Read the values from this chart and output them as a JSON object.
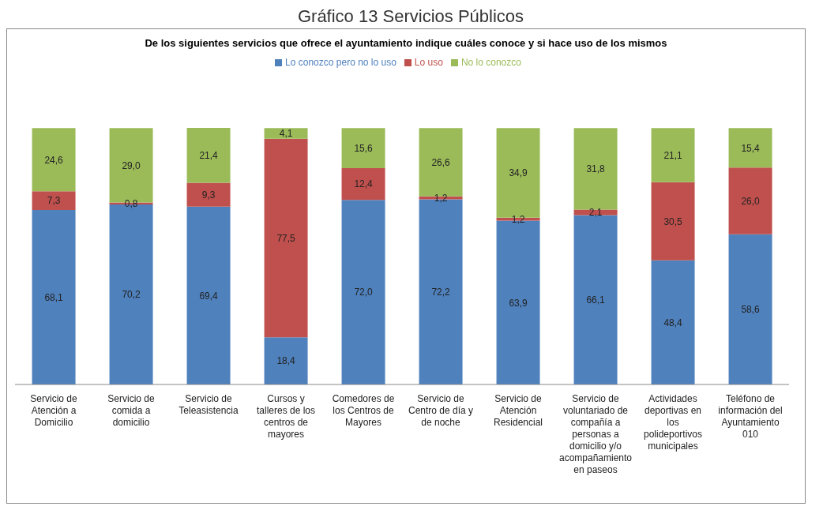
{
  "chart_data": {
    "type": "bar",
    "stacked": true,
    "title": "Gráfico 13 Servicios Públicos",
    "subtitle": "De los siguientes servicios que ofrece el ayuntamiento indique cuáles conoce y si hace uso de los mismos",
    "categories": [
      "Servicio de Atención a Domicilio",
      "Servicio de comida a domicilio",
      "Servicio de Teleasistencia",
      "Cursos y talleres de los centros de mayores",
      "Comedores de los Centros de Mayores",
      "Servicio de Centro de día y de noche",
      "Servicio de Atención Residencial",
      "Servicio de voluntariado de compañía a personas a domicilio y/o acompañamiento en paseos",
      "Actividades deportivas en los polideportivos municipales",
      "Teléfono de información del Ayuntamiento 010"
    ],
    "series": [
      {
        "name": "Lo conozco pero no lo uso",
        "color": "#4f81bd",
        "values": [
          68.1,
          70.2,
          69.4,
          18.4,
          72.0,
          72.2,
          63.9,
          66.1,
          48.4,
          58.6
        ],
        "value_labels": [
          "68,1",
          "70,2",
          "69,4",
          "18,4",
          "72,0",
          "72,2",
          "63,9",
          "66,1",
          "48,4",
          "58,6"
        ]
      },
      {
        "name": "Lo uso",
        "color": "#c0504d",
        "values": [
          7.3,
          0.8,
          9.3,
          77.5,
          12.4,
          1.2,
          1.2,
          2.1,
          30.5,
          26.0
        ],
        "value_labels": [
          "7,3",
          "0,8",
          "9,3",
          "77,5",
          "12,4",
          "1,2",
          "1,2",
          "2,1",
          "30,5",
          "26,0"
        ]
      },
      {
        "name": "No lo conozco",
        "color": "#9bbb59",
        "values": [
          24.6,
          29.0,
          21.4,
          4.1,
          15.6,
          26.6,
          34.9,
          31.8,
          21.1,
          15.4
        ],
        "value_labels": [
          "24,6",
          "29,0",
          "21,4",
          "4,1",
          "15,6",
          "26,6",
          "34,9",
          "31,8",
          "21,1",
          "15,4"
        ]
      }
    ],
    "legend": "top",
    "tick_labels": "x"
  }
}
